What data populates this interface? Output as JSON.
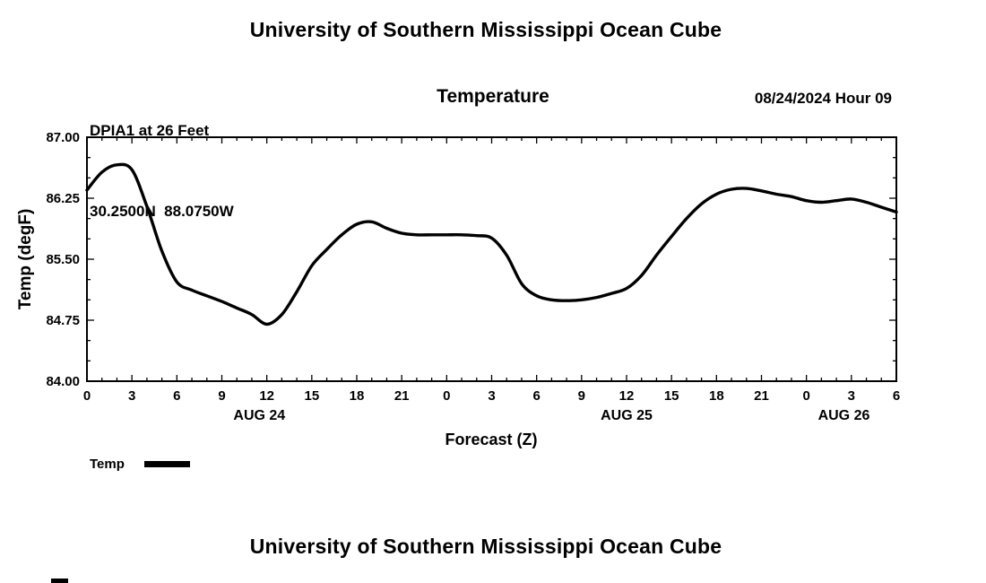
{
  "header": {
    "title": "University of Southern Mississippi Ocean Cube"
  },
  "footer": {
    "title": "University of Southern Mississippi Ocean Cube"
  },
  "chart_data": {
    "type": "line",
    "title": "Temperature",
    "station": "DPIA1 at 26 Feet",
    "coordinates": "30.2500N  88.0750W",
    "datetime": "08/24/2024 Hour 09",
    "xlabel": "Forecast (Z)",
    "ylabel": "Temp (degF)",
    "xlim": [
      0,
      54
    ],
    "ylim": [
      84.0,
      87.0
    ],
    "xticks": [
      0,
      3,
      6,
      9,
      12,
      15,
      18,
      21,
      24,
      27,
      30,
      33,
      36,
      39,
      42,
      45,
      48,
      51,
      54
    ],
    "xtick_labels": [
      "0",
      "3",
      "6",
      "9",
      "12",
      "15",
      "18",
      "21",
      "0",
      "3",
      "6",
      "9",
      "12",
      "15",
      "18",
      "21",
      "0",
      "3",
      "6"
    ],
    "yticks": [
      84.0,
      84.75,
      85.5,
      86.25,
      87.0
    ],
    "ytick_labels": [
      "84.00",
      "84.75",
      "85.50",
      "86.25",
      "87.00"
    ],
    "date_labels": [
      {
        "label": "AUG 24",
        "hour": 11.5
      },
      {
        "label": "AUG 25",
        "hour": 36
      },
      {
        "label": "AUG 26",
        "hour": 50.5
      }
    ],
    "grid": false,
    "legend_position": "below-left",
    "legend": [
      {
        "name": "Temp",
        "color": "#000000"
      }
    ],
    "series": [
      {
        "name": "Temp",
        "color": "#000000",
        "x": [
          0,
          1,
          2,
          3,
          4,
          5,
          6,
          7,
          8,
          9,
          10,
          11,
          12,
          13,
          14,
          15,
          16,
          17,
          18,
          19,
          20,
          21,
          22,
          23,
          24,
          25,
          26,
          27,
          28,
          29,
          30,
          31,
          32,
          33,
          34,
          35,
          36,
          37,
          38,
          39,
          40,
          41,
          42,
          43,
          44,
          45,
          46,
          47,
          48,
          49,
          50,
          51,
          52,
          53,
          54
        ],
        "y": [
          86.35,
          86.57,
          86.66,
          86.6,
          86.15,
          85.6,
          85.22,
          85.12,
          85.05,
          84.98,
          84.9,
          84.82,
          84.7,
          84.82,
          85.1,
          85.42,
          85.62,
          85.8,
          85.93,
          85.96,
          85.88,
          85.82,
          85.8,
          85.8,
          85.8,
          85.8,
          85.79,
          85.76,
          85.55,
          85.2,
          85.05,
          85.0,
          84.99,
          85.0,
          85.03,
          85.08,
          85.14,
          85.3,
          85.55,
          85.78,
          86.0,
          86.18,
          86.3,
          86.36,
          86.37,
          86.34,
          86.3,
          86.27,
          86.22,
          86.2,
          86.22,
          86.24,
          86.2,
          86.14,
          86.08
        ]
      }
    ]
  }
}
